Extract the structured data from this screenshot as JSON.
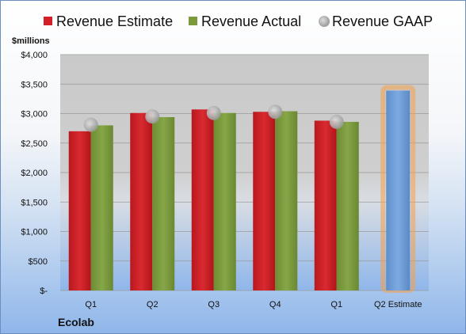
{
  "chart_data": {
    "type": "bar",
    "unit_label": "$millions",
    "company": "Ecolab",
    "categories": [
      "Q1",
      "Q2",
      "Q3",
      "Q4",
      "Q1",
      "Q2 Estimate"
    ],
    "series": [
      {
        "name": "Revenue Estimate",
        "color": "#d32027",
        "values": [
          2700,
          3010,
          3070,
          3030,
          2880,
          null
        ]
      },
      {
        "name": "Revenue Actual",
        "color": "#7a9a3c",
        "values": [
          2800,
          2940,
          3010,
          3040,
          2860,
          null
        ]
      },
      {
        "name": "Revenue GAAP",
        "color": "#b8b8b8",
        "marker": "circle",
        "values": [
          2810,
          2950,
          3010,
          3030,
          2860,
          null
        ]
      }
    ],
    "q2_estimate": {
      "value": 3390,
      "color": "#6f9fd8",
      "highlight": "#f5a14a"
    },
    "ylim": [
      0,
      4000
    ],
    "yticks": [
      0,
      500,
      1000,
      1500,
      2000,
      2500,
      3000,
      3500,
      4000
    ],
    "ytick_labels": [
      "$-",
      "$500",
      "$1,000",
      "$1,500",
      "$2,000",
      "$2,500",
      "$3,000",
      "$3,500",
      "$4,000"
    ],
    "grid": true,
    "legend_position": "top"
  }
}
